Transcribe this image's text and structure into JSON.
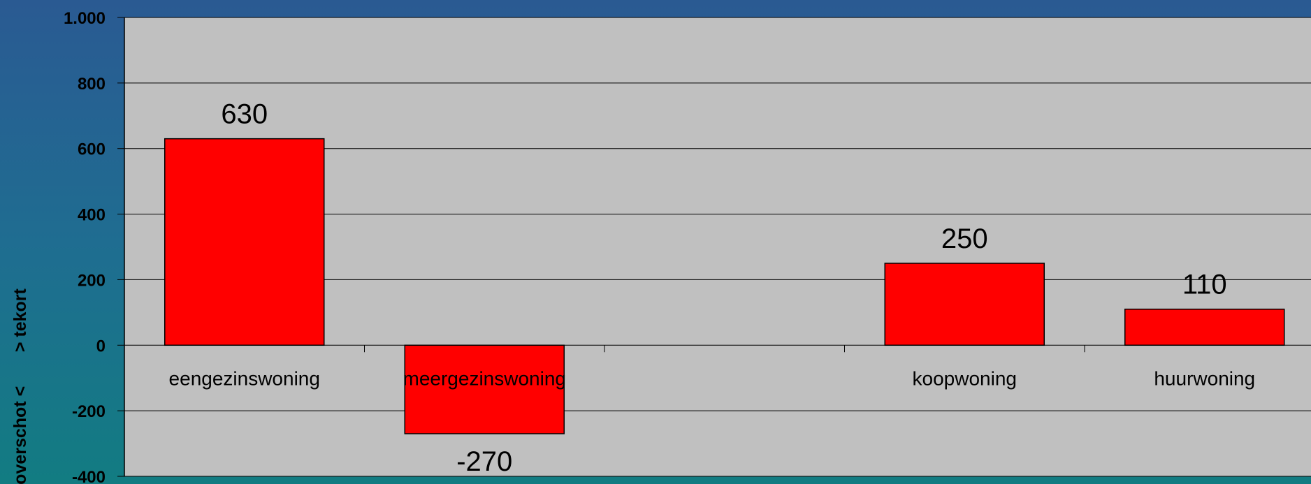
{
  "chart_data": {
    "type": "bar",
    "categories": [
      "eengezinswoning",
      "meergezinswoning",
      "",
      "koopwoning",
      "huurwoning"
    ],
    "values": [
      630,
      -270,
      null,
      250,
      110
    ],
    "data_labels": [
      "630",
      "-270",
      "",
      "250",
      "110"
    ],
    "yticks": [
      1000,
      800,
      600,
      400,
      200,
      0,
      -200,
      -400
    ],
    "ytick_labels": [
      "1.000",
      "800",
      "600",
      "400",
      "200",
      "0",
      "-200",
      "-400"
    ],
    "ylim": [
      -400,
      1000
    ],
    "ylabel": "overschot <       > tekort",
    "title": "",
    "xlabel": "",
    "grid": true,
    "colors": {
      "bar": "#ff0000",
      "plot_background": "#c0c0c0",
      "gridline": "#000000"
    }
  }
}
